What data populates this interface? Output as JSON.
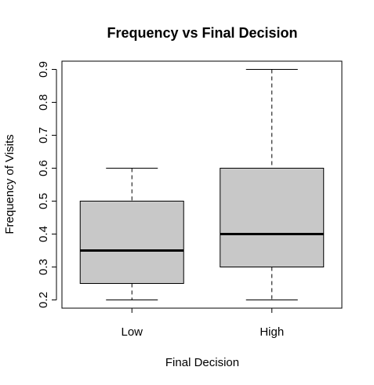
{
  "chart_data": {
    "type": "boxplot",
    "title": "Frequency vs Final Decision",
    "xlabel": "Final Decision",
    "ylabel": "Frequency of Visits",
    "categories": [
      "Low",
      "High"
    ],
    "boxes": [
      {
        "category": "Low",
        "whisker_low": 0.2,
        "q1": 0.25,
        "median": 0.35,
        "q3": 0.5,
        "whisker_high": 0.6
      },
      {
        "category": "High",
        "whisker_low": 0.2,
        "q1": 0.3,
        "median": 0.4,
        "q3": 0.6,
        "whisker_high": 0.9
      }
    ],
    "yticks": [
      "0.2",
      "0.3",
      "0.4",
      "0.5",
      "0.6",
      "0.7",
      "0.8",
      "0.9"
    ],
    "ylim": [
      0.175,
      0.925
    ],
    "grid": false,
    "box_fill": "#c8c8c8"
  }
}
